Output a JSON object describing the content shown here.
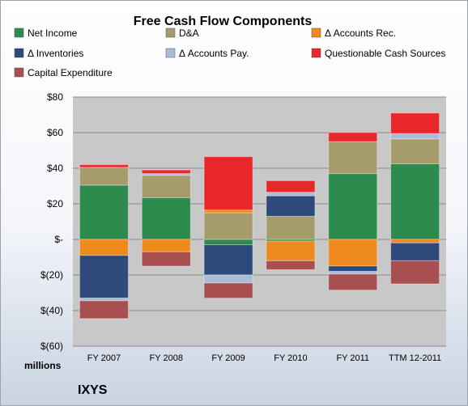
{
  "chart_data": {
    "type": "bar",
    "stacked": true,
    "title": "Free Cash Flow Components",
    "unit_label": "millions",
    "company": "IXYS",
    "categories": [
      "FY 2007",
      "FY 2008",
      "FY 2009",
      "FY 2010",
      "FY 2011",
      "TTM 12-2011"
    ],
    "ylim": [
      -60,
      80
    ],
    "y_ticks": [
      80,
      60,
      40,
      20,
      0,
      -20,
      -40,
      -60
    ],
    "y_tick_labels": [
      "$80",
      "$60",
      "$40",
      "$20",
      "$-",
      "$(20)",
      "$(40)",
      "$(60)"
    ],
    "grid": true,
    "legend_position": "top",
    "series": [
      {
        "name": "Net Income",
        "color": "#2e8b4e",
        "values": [
          30.5,
          23.5,
          -3,
          -1,
          37,
          42.5
        ]
      },
      {
        "name": "D&A",
        "color": "#a69b6b",
        "values": [
          10,
          12.5,
          15,
          13,
          18,
          14
        ]
      },
      {
        "name": "Δ Accounts Rec.",
        "color": "#ef8a1f",
        "values": [
          -9,
          -7,
          1.5,
          -11,
          -15,
          -2
        ]
      },
      {
        "name": "Δ Inventories",
        "color": "#2e4a7a",
        "values": [
          -24,
          0,
          -17,
          11.5,
          -3,
          -10
        ]
      },
      {
        "name": "Δ Accounts Pay.",
        "color": "#a9bdd8",
        "values": [
          -1.5,
          1,
          -4.5,
          2,
          -1.5,
          3
        ]
      },
      {
        "name": "Questionable Cash Sources",
        "color": "#e8272a",
        "values": [
          1.5,
          2,
          30,
          6.5,
          5,
          11.5
        ]
      },
      {
        "name": "Capital Expenditure",
        "color": "#a85050",
        "values": [
          -10,
          -8,
          -8.5,
          -5,
          -9,
          -13
        ]
      }
    ]
  }
}
